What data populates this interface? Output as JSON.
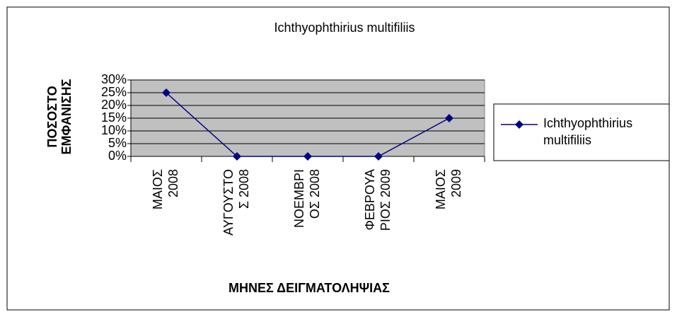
{
  "chart_data": {
    "type": "line",
    "title": "Ichthyophthirius multifiliis",
    "x_label": "ΜΗΝΕΣ ΔΕΙΓΜΑΤΟΛΗΨΙΑΣ",
    "y_label": "ΠΟΣΟΣΤΟ\nΕΜΦΑΝΙΣΗΣ",
    "categories": [
      "ΜΑΙΟΣ\n2008",
      "ΑΥΓΟΥΣΤΟ\nΣ 2008",
      "ΝΟΕΜΒΡΙ\nΟΣ 2008",
      "ΦΕΒΡΟΥΑ\nΡΙΟΣ 2009",
      "ΜΑΙΟΣ\n2009"
    ],
    "series": [
      {
        "name": "Ichthyophthirius\nmultifiliis",
        "color": "#000080",
        "values": [
          25,
          0,
          0,
          0,
          15
        ]
      }
    ],
    "ylim": [
      0,
      30
    ],
    "yticks": [
      {
        "value": 0,
        "label": "0%"
      },
      {
        "value": 5,
        "label": "5%"
      },
      {
        "value": 10,
        "label": "10%"
      },
      {
        "value": 15,
        "label": "15%"
      },
      {
        "value": 20,
        "label": "20%"
      },
      {
        "value": 25,
        "label": "25%"
      },
      {
        "value": 30,
        "label": "30%"
      }
    ],
    "grid": true,
    "legend": "right"
  }
}
